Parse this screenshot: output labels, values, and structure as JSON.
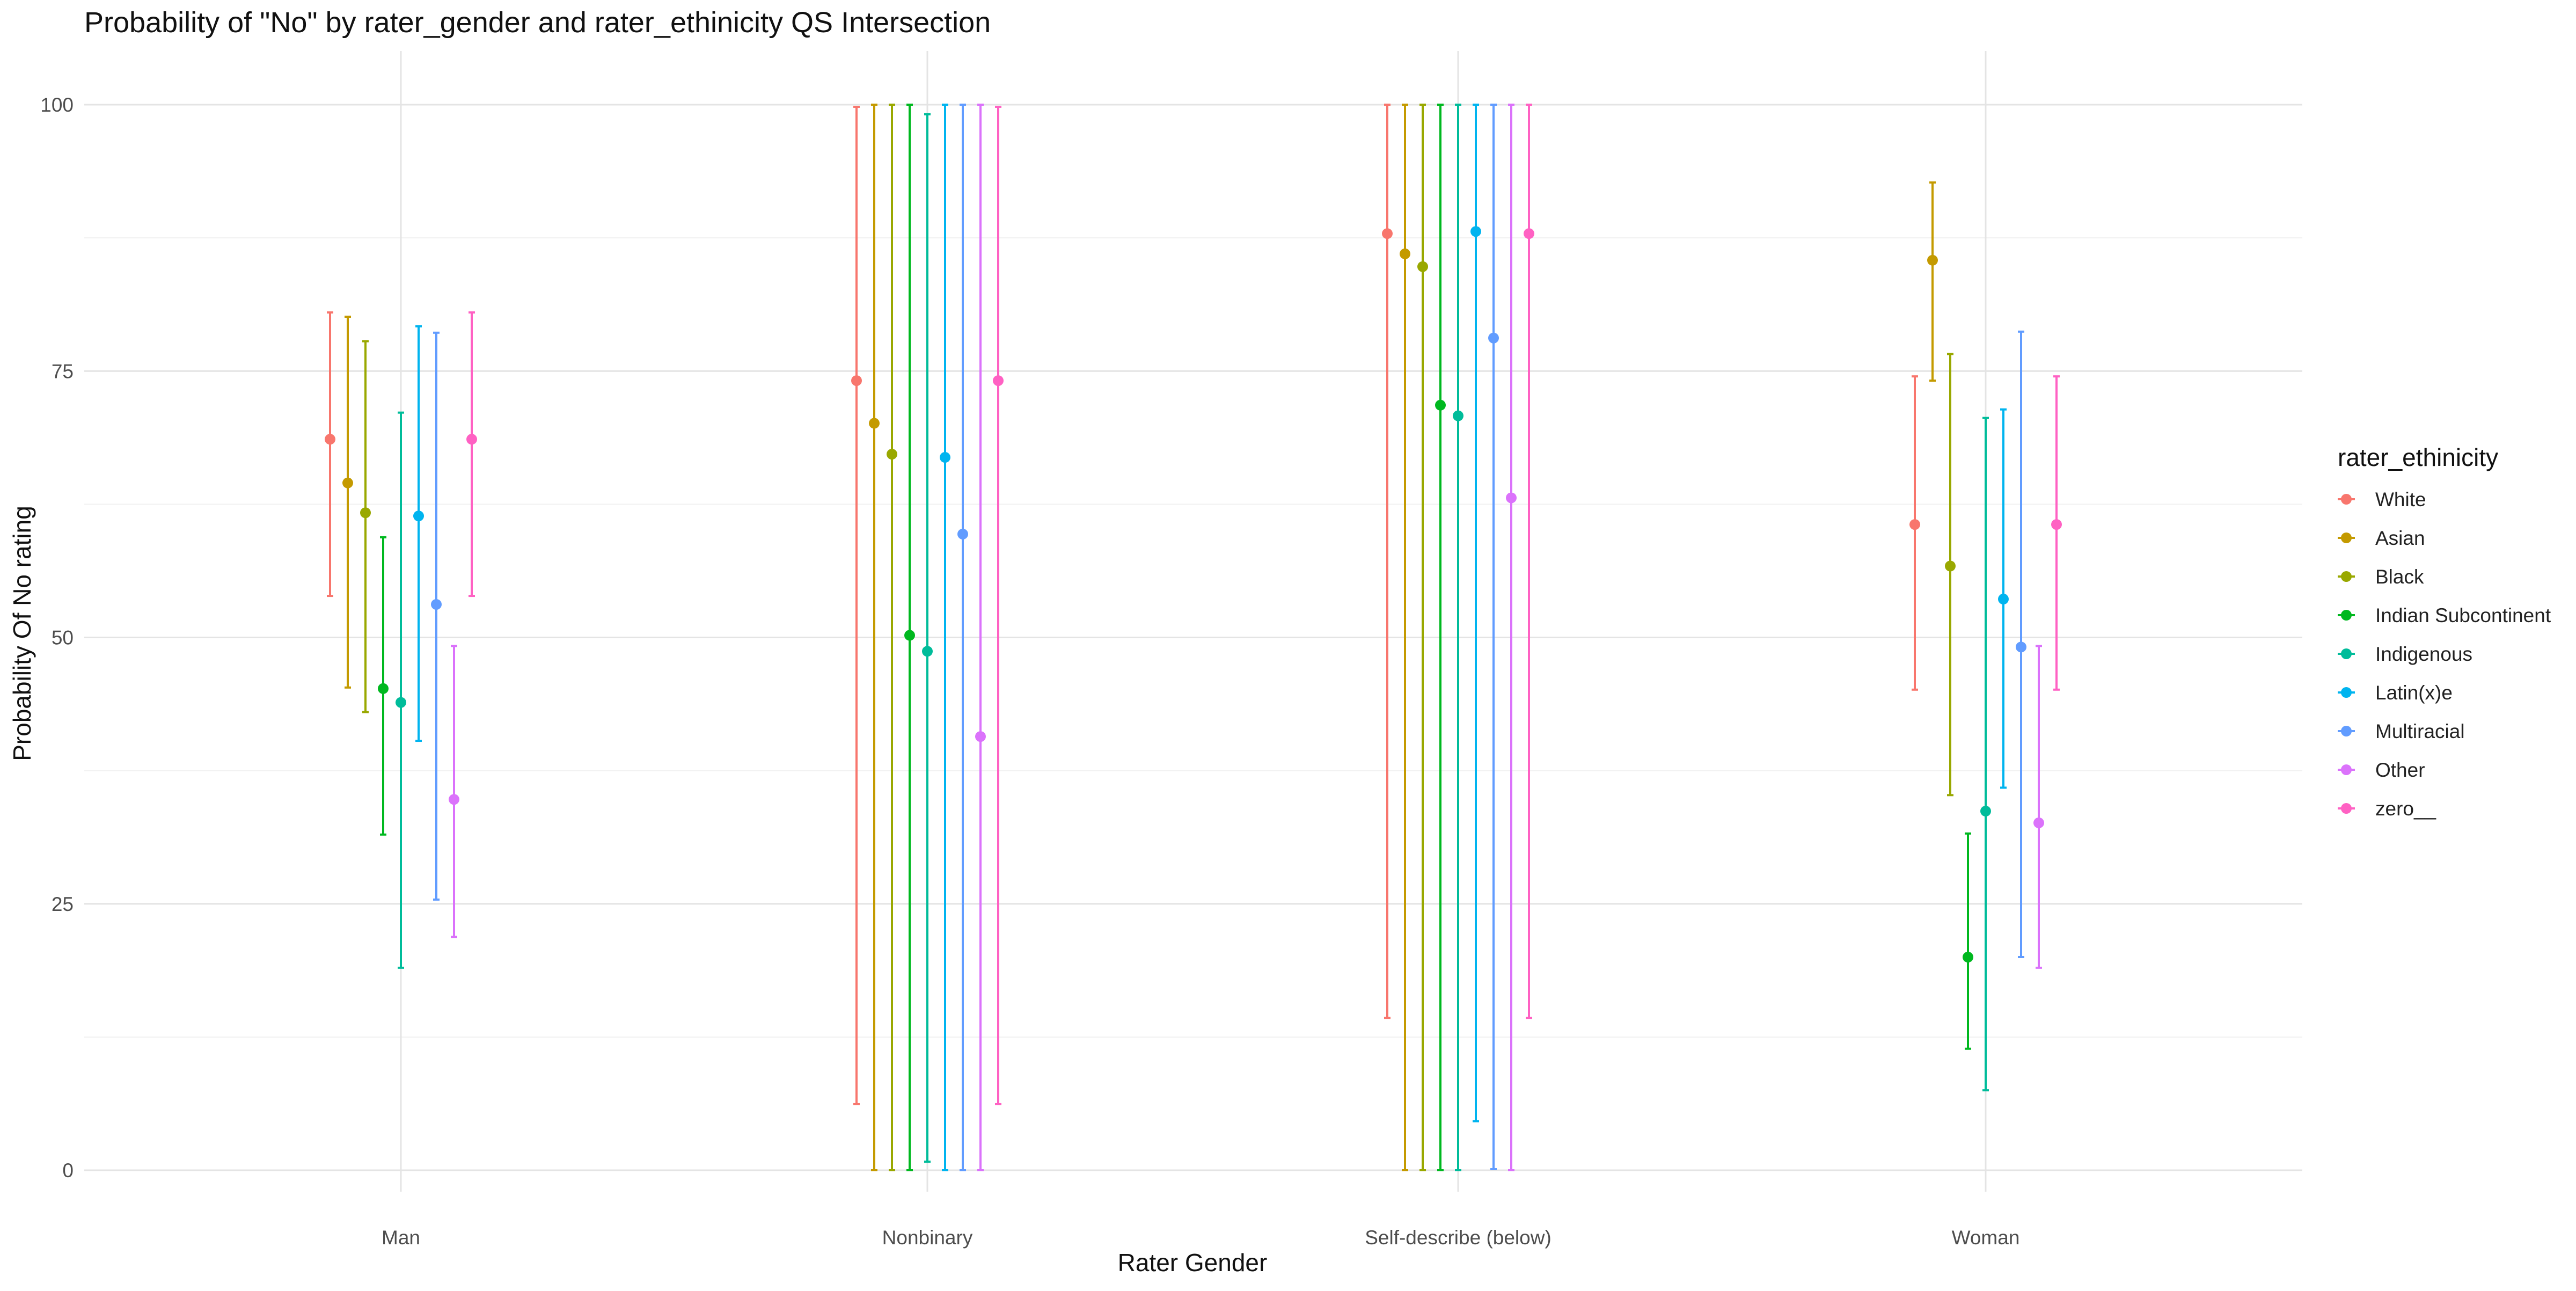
{
  "chart_data": {
    "type": "errorbar",
    "title": "Probability of \"No\" by rater_gender and  rater_ethinicity  QS Intersection",
    "xlabel": "Rater Gender",
    "ylabel": "Probability Of No rating",
    "ylim": [
      0,
      100
    ],
    "yticks": [
      0,
      25,
      50,
      75,
      100
    ],
    "grid": true,
    "legend_position": "right",
    "legend_title": "rater_ethinicity",
    "categories": [
      "Man",
      "Nonbinary",
      "Self-describe (below)",
      "Woman"
    ],
    "series": [
      {
        "name": "White",
        "color": "#F8766D",
        "values": [
          68.6,
          74.1,
          87.9,
          60.6
        ],
        "lower": [
          53.9,
          6.2,
          14.3,
          45.1
        ],
        "upper": [
          80.5,
          99.8,
          100,
          74.5
        ]
      },
      {
        "name": "Asian",
        "color": "#C49A00",
        "values": [
          64.5,
          70.1,
          86.0,
          85.4
        ],
        "lower": [
          45.3,
          0,
          0,
          74.1
        ],
        "upper": [
          80.1,
          100,
          100,
          92.7
        ]
      },
      {
        "name": "Black",
        "color": "#99A800",
        "values": [
          61.7,
          67.2,
          84.8,
          56.7
        ],
        "lower": [
          43.0,
          0,
          0,
          35.2
        ],
        "upper": [
          77.8,
          100,
          100,
          76.6
        ]
      },
      {
        "name": "Indian Subcontinent",
        "color": "#00B81F",
        "values": [
          45.2,
          50.2,
          71.8,
          20.0
        ],
        "lower": [
          31.5,
          0,
          0,
          11.4
        ],
        "upper": [
          59.4,
          100,
          100,
          31.6
        ]
      },
      {
        "name": "Indigenous",
        "color": "#00BC9A",
        "values": [
          43.9,
          48.7,
          70.8,
          33.7
        ],
        "lower": [
          19.0,
          0.8,
          0,
          7.5
        ],
        "upper": [
          71.1,
          99.1,
          100,
          70.6
        ]
      },
      {
        "name": "Latin(x)e",
        "color": "#00B4EF",
        "values": [
          61.4,
          66.9,
          88.1,
          53.6
        ],
        "lower": [
          40.3,
          0,
          4.6,
          35.9
        ],
        "upper": [
          79.2,
          100,
          100,
          71.4
        ]
      },
      {
        "name": "Multiracial",
        "color": "#619CFF",
        "values": [
          53.1,
          59.7,
          78.1,
          49.1
        ],
        "lower": [
          25.4,
          0,
          0.1,
          20.0
        ],
        "upper": [
          78.6,
          100,
          100,
          78.7
        ]
      },
      {
        "name": "Other",
        "color": "#DB72FB",
        "values": [
          34.8,
          40.7,
          63.1,
          32.6
        ],
        "lower": [
          21.9,
          0,
          0,
          19.0
        ],
        "upper": [
          49.2,
          100,
          100,
          49.2
        ]
      },
      {
        "name": "zero__",
        "color": "#FF61C3",
        "values": [
          68.6,
          74.1,
          87.9,
          60.6
        ],
        "lower": [
          53.9,
          6.2,
          14.3,
          45.1
        ],
        "upper": [
          80.5,
          99.8,
          100,
          74.5
        ]
      }
    ]
  }
}
